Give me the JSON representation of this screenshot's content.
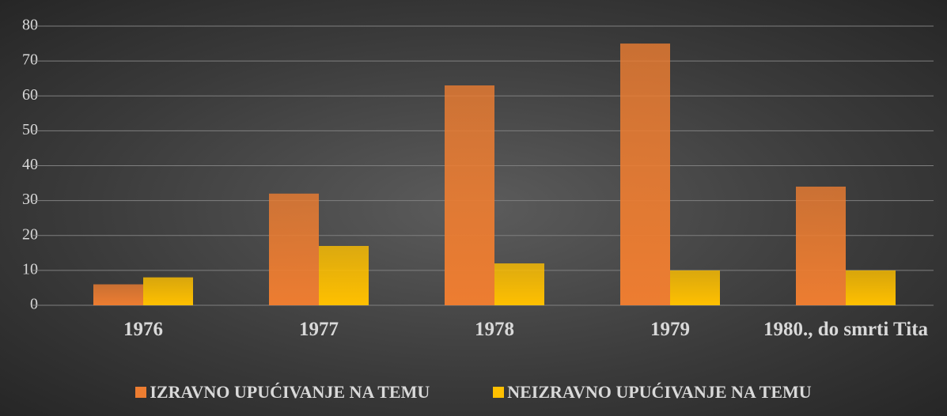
{
  "chart_data": {
    "type": "bar",
    "categories": [
      "1976",
      "1977",
      "1978",
      "1979",
      "1980., do smrti Tita"
    ],
    "series": [
      {
        "name": "IZRAVNO UPUĆIVANJE NA TEMU",
        "color": "#ed7d31",
        "values": [
          6,
          32,
          63,
          75,
          34
        ]
      },
      {
        "name": "NEIZRAVNO UPUĆIVANJE NA TEMU",
        "color": "#ffc000",
        "values": [
          8,
          17,
          12,
          10,
          10
        ]
      }
    ],
    "ylim": [
      0,
      80
    ],
    "yticks": [
      0,
      10,
      20,
      30,
      40,
      50,
      60,
      70,
      80
    ],
    "grid": true,
    "legend": "bottom"
  }
}
